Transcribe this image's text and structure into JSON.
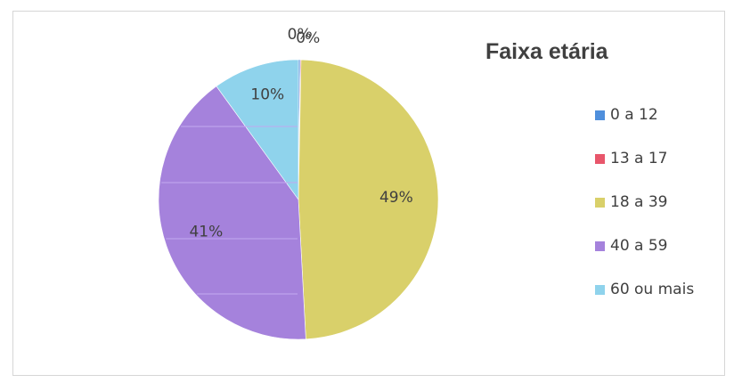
{
  "chart_data": {
    "type": "pie",
    "title": "Faixa etária",
    "legend_position": "right",
    "categories": [
      "0 a 12",
      "13 a 17",
      "18 a 39",
      "40 a 59",
      "60 ou mais"
    ],
    "values": [
      0.2,
      0.1,
      49,
      41,
      10
    ],
    "labels": [
      "0%",
      "0%",
      "49%",
      "41%",
      "10%"
    ],
    "colors": [
      "#4f8fdc",
      "#e8566b",
      "#d9d06a",
      "#a582dc",
      "#8fd3ec"
    ]
  }
}
